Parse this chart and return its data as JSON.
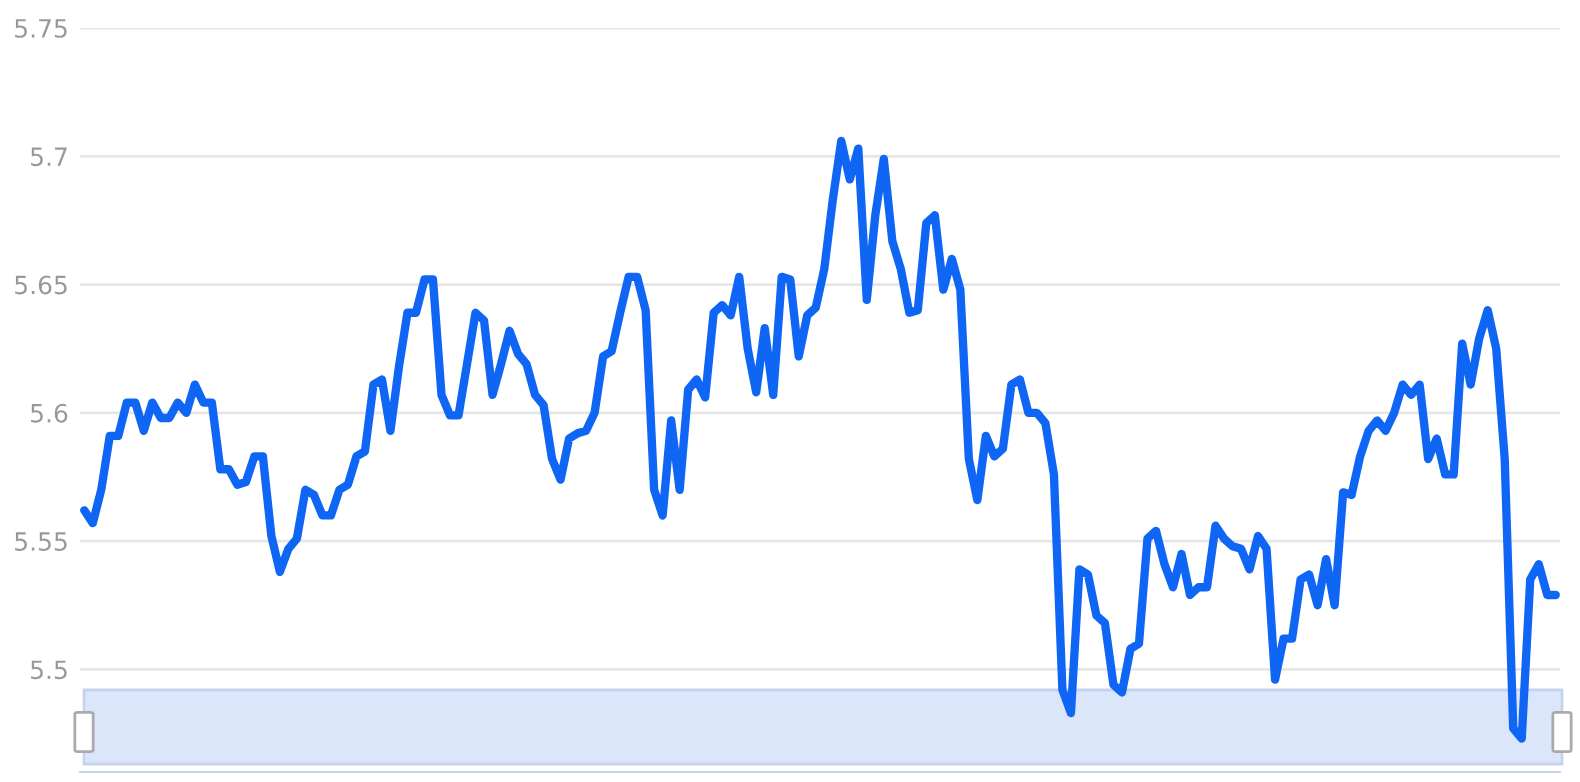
{
  "chart_data": {
    "type": "line",
    "categories": [
      null,
      null,
      null,
      null,
      null,
      null,
      null,
      null,
      null,
      null,
      null,
      null,
      null,
      null,
      null,
      null,
      null,
      null,
      null,
      null,
      null,
      null,
      null,
      null,
      null,
      null,
      null,
      null,
      null,
      null,
      null,
      null,
      null,
      null,
      null,
      null,
      null,
      null,
      null,
      null,
      null,
      null,
      null,
      null,
      null,
      null,
      null,
      null,
      null,
      null,
      null,
      null,
      null,
      null,
      null,
      null,
      null,
      null,
      null,
      null,
      null,
      null,
      null,
      null,
      null,
      null,
      null,
      null,
      null,
      null,
      null,
      null,
      null,
      null,
      null,
      null,
      null,
      null,
      null,
      null,
      null,
      null,
      null,
      null,
      null,
      null,
      null,
      null,
      null,
      null,
      null,
      null,
      null,
      null,
      null,
      null,
      null,
      null,
      null,
      null,
      null,
      null,
      null,
      null,
      null,
      null,
      null,
      null,
      null,
      null,
      null,
      null,
      null,
      null,
      null,
      null,
      null,
      null,
      null,
      null,
      null,
      null,
      null,
      null,
      null,
      null,
      null,
      null,
      null,
      null,
      null,
      null,
      null,
      null,
      null,
      null,
      null,
      null,
      null,
      null,
      null,
      null,
      null,
      null,
      null,
      null,
      null,
      null,
      null,
      null,
      null,
      null,
      null,
      null,
      null,
      null,
      null,
      null,
      null,
      null,
      null,
      null,
      null,
      null,
      null,
      null,
      null,
      null,
      null,
      null,
      null,
      null,
      null,
      null
    ],
    "series": [
      {
        "color": "#0f66f5",
        "values": [
          5.562,
          5.557,
          5.57,
          5.591,
          5.591,
          5.604,
          5.604,
          5.593,
          5.604,
          5.598,
          5.598,
          5.604,
          5.6,
          5.611,
          5.604,
          5.604,
          5.578,
          5.578,
          5.572,
          5.573,
          5.583,
          5.583,
          5.552,
          5.538,
          5.547,
          5.551,
          5.57,
          5.568,
          5.56,
          5.56,
          5.57,
          5.572,
          5.583,
          5.585,
          5.611,
          5.613,
          5.593,
          5.618,
          5.639,
          5.639,
          5.652,
          5.652,
          5.607,
          5.599,
          5.599,
          5.619,
          5.639,
          5.636,
          5.607,
          5.619,
          5.632,
          5.623,
          5.619,
          5.607,
          5.603,
          5.582,
          5.574,
          5.59,
          5.592,
          5.593,
          5.6,
          5.622,
          5.624,
          5.639,
          5.653,
          5.653,
          5.64,
          5.57,
          5.56,
          5.597,
          5.57,
          5.609,
          5.613,
          5.606,
          5.639,
          5.642,
          5.638,
          5.653,
          5.625,
          5.608,
          5.633,
          5.607,
          5.653,
          5.652,
          5.622,
          5.638,
          5.641,
          5.656,
          5.683,
          5.706,
          5.691,
          5.703,
          5.644,
          5.677,
          5.699,
          5.667,
          5.656,
          5.639,
          5.64,
          5.674,
          5.677,
          5.648,
          5.66,
          5.648,
          5.582,
          5.566,
          5.591,
          5.583,
          5.586,
          5.611,
          5.613,
          5.6,
          5.6,
          5.596,
          5.576,
          5.492,
          5.483,
          5.539,
          5.537,
          5.521,
          5.518,
          5.494,
          5.491,
          5.508,
          5.51,
          5.551,
          5.554,
          5.541,
          5.532,
          5.545,
          5.529,
          5.532,
          5.532,
          5.556,
          5.551,
          5.548,
          5.547,
          5.539,
          5.552,
          5.547,
          5.496,
          5.512,
          5.512,
          5.535,
          5.537,
          5.525,
          5.543,
          5.525,
          5.569,
          5.568,
          5.583,
          5.593,
          5.597,
          5.593,
          5.6,
          5.611,
          5.607,
          5.611,
          5.582,
          5.59,
          5.576,
          5.576,
          5.627,
          5.611,
          5.629,
          5.64,
          5.625,
          5.582,
          5.477,
          5.473,
          5.535,
          5.541,
          5.529,
          5.529
        ]
      }
    ],
    "ylim": [
      5.46,
      5.75
    ],
    "yticks": [
      5.5,
      5.55,
      5.6,
      5.65,
      5.7,
      5.75
    ],
    "grid": "y",
    "marker": "none",
    "line_style": "solid"
  }
}
